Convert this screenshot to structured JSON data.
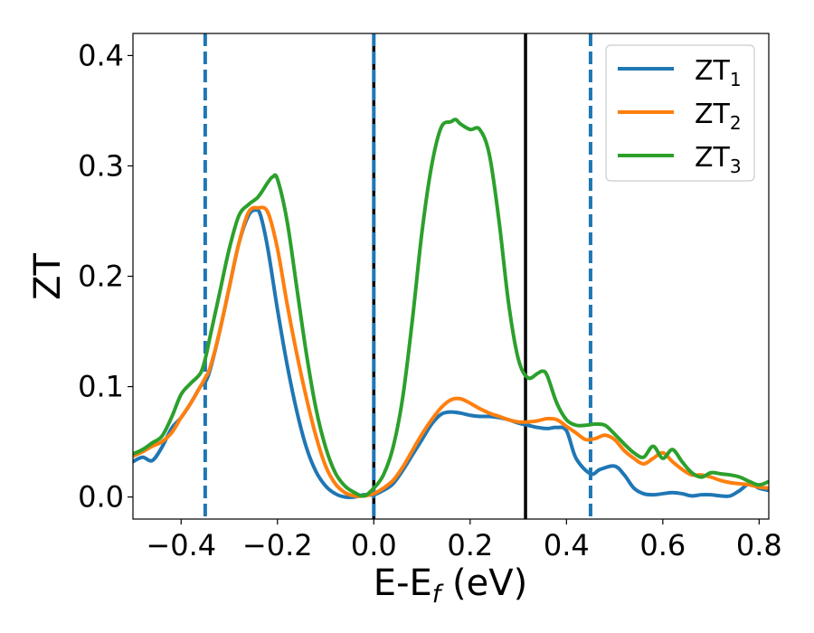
{
  "chart_data": {
    "type": "line",
    "xlabel": "E-E",
    "xlabel_sub": "f",
    "xlabel_unit": " (eV)",
    "ylabel": "ZT",
    "xlim": [
      -0.5,
      0.82
    ],
    "ylim": [
      -0.02,
      0.42
    ],
    "xticks": [
      -0.4,
      -0.2,
      0.0,
      0.2,
      0.4,
      0.6,
      0.8
    ],
    "xtick_labels": [
      "−0.4",
      "−0.2",
      "0.0",
      "0.2",
      "0.4",
      "0.6",
      "0.8"
    ],
    "yticks": [
      0.0,
      0.1,
      0.2,
      0.3,
      0.4
    ],
    "ytick_labels": [
      "0.0",
      "0.1",
      "0.2",
      "0.3",
      "0.4"
    ],
    "grid": false,
    "legend_position": "top-right",
    "series": [
      {
        "name": "ZT",
        "name_sub": "1",
        "color": "#1f77b4",
        "x": [
          -0.5,
          -0.48,
          -0.46,
          -0.44,
          -0.42,
          -0.4,
          -0.38,
          -0.36,
          -0.35,
          -0.34,
          -0.32,
          -0.3,
          -0.28,
          -0.26,
          -0.245,
          -0.235,
          -0.22,
          -0.2,
          -0.18,
          -0.16,
          -0.14,
          -0.12,
          -0.1,
          -0.08,
          -0.06,
          -0.04,
          -0.02,
          0.0,
          0.02,
          0.04,
          0.06,
          0.08,
          0.1,
          0.12,
          0.14,
          0.16,
          0.18,
          0.2,
          0.22,
          0.24,
          0.26,
          0.28,
          0.3,
          0.32,
          0.34,
          0.36,
          0.38,
          0.4,
          0.42,
          0.45,
          0.47,
          0.5,
          0.52,
          0.54,
          0.56,
          0.58,
          0.6,
          0.62,
          0.64,
          0.66,
          0.68,
          0.7,
          0.72,
          0.74,
          0.76,
          0.78,
          0.8,
          0.82
        ],
        "y": [
          0.032,
          0.036,
          0.033,
          0.045,
          0.062,
          0.072,
          0.085,
          0.1,
          0.104,
          0.115,
          0.15,
          0.19,
          0.23,
          0.255,
          0.26,
          0.255,
          0.225,
          0.17,
          0.12,
          0.078,
          0.045,
          0.023,
          0.01,
          0.003,
          0.0,
          0.0,
          0.002,
          0.002,
          0.006,
          0.012,
          0.024,
          0.038,
          0.052,
          0.066,
          0.075,
          0.077,
          0.076,
          0.074,
          0.073,
          0.073,
          0.072,
          0.07,
          0.067,
          0.065,
          0.063,
          0.062,
          0.063,
          0.06,
          0.035,
          0.021,
          0.025,
          0.028,
          0.02,
          0.008,
          0.003,
          0.002,
          0.003,
          0.004,
          0.003,
          0.001,
          0.002,
          0.002,
          0.001,
          0.001,
          0.006,
          0.012,
          0.008,
          0.006
        ]
      },
      {
        "name": "ZT",
        "name_sub": "2",
        "color": "#ff7f0e",
        "x": [
          -0.5,
          -0.48,
          -0.46,
          -0.44,
          -0.42,
          -0.4,
          -0.38,
          -0.36,
          -0.35,
          -0.34,
          -0.32,
          -0.3,
          -0.28,
          -0.26,
          -0.24,
          -0.22,
          -0.2,
          -0.18,
          -0.16,
          -0.14,
          -0.12,
          -0.1,
          -0.08,
          -0.06,
          -0.04,
          -0.02,
          0.0,
          0.02,
          0.04,
          0.06,
          0.08,
          0.1,
          0.12,
          0.14,
          0.16,
          0.18,
          0.2,
          0.22,
          0.24,
          0.26,
          0.28,
          0.3,
          0.32,
          0.34,
          0.36,
          0.38,
          0.4,
          0.42,
          0.44,
          0.46,
          0.48,
          0.5,
          0.52,
          0.54,
          0.56,
          0.58,
          0.6,
          0.62,
          0.64,
          0.66,
          0.68,
          0.7,
          0.72,
          0.74,
          0.76,
          0.78,
          0.8,
          0.82
        ],
        "y": [
          0.037,
          0.041,
          0.046,
          0.05,
          0.058,
          0.072,
          0.085,
          0.1,
          0.108,
          0.117,
          0.15,
          0.19,
          0.23,
          0.258,
          0.262,
          0.258,
          0.225,
          0.175,
          0.13,
          0.09,
          0.055,
          0.028,
          0.012,
          0.004,
          0.001,
          0.001,
          0.003,
          0.008,
          0.015,
          0.027,
          0.042,
          0.057,
          0.07,
          0.081,
          0.088,
          0.089,
          0.085,
          0.08,
          0.076,
          0.073,
          0.07,
          0.068,
          0.068,
          0.069,
          0.071,
          0.07,
          0.064,
          0.058,
          0.052,
          0.053,
          0.056,
          0.052,
          0.042,
          0.035,
          0.03,
          0.035,
          0.04,
          0.032,
          0.025,
          0.02,
          0.02,
          0.018,
          0.015,
          0.013,
          0.012,
          0.011,
          0.009,
          0.008
        ]
      },
      {
        "name": "ZT",
        "name_sub": "3",
        "color": "#2ca02c",
        "x": [
          -0.5,
          -0.48,
          -0.46,
          -0.44,
          -0.42,
          -0.4,
          -0.38,
          -0.36,
          -0.35,
          -0.34,
          -0.32,
          -0.3,
          -0.28,
          -0.26,
          -0.24,
          -0.22,
          -0.21,
          -0.2,
          -0.18,
          -0.16,
          -0.14,
          -0.12,
          -0.1,
          -0.08,
          -0.06,
          -0.04,
          -0.02,
          0.0,
          0.02,
          0.04,
          0.06,
          0.08,
          0.1,
          0.12,
          0.14,
          0.16,
          0.17,
          0.18,
          0.2,
          0.22,
          0.24,
          0.26,
          0.28,
          0.3,
          0.32,
          0.34,
          0.35,
          0.36,
          0.38,
          0.4,
          0.42,
          0.44,
          0.46,
          0.48,
          0.5,
          0.52,
          0.54,
          0.56,
          0.58,
          0.6,
          0.62,
          0.64,
          0.66,
          0.68,
          0.7,
          0.72,
          0.74,
          0.76,
          0.78,
          0.8,
          0.82
        ],
        "y": [
          0.039,
          0.043,
          0.049,
          0.055,
          0.072,
          0.093,
          0.103,
          0.112,
          0.125,
          0.145,
          0.185,
          0.225,
          0.255,
          0.265,
          0.272,
          0.285,
          0.29,
          0.288,
          0.25,
          0.19,
          0.13,
          0.08,
          0.045,
          0.022,
          0.01,
          0.004,
          0.001,
          0.008,
          0.02,
          0.045,
          0.09,
          0.16,
          0.24,
          0.3,
          0.335,
          0.34,
          0.342,
          0.338,
          0.333,
          0.333,
          0.31,
          0.25,
          0.175,
          0.125,
          0.108,
          0.112,
          0.114,
          0.11,
          0.085,
          0.07,
          0.065,
          0.065,
          0.066,
          0.065,
          0.057,
          0.048,
          0.04,
          0.036,
          0.046,
          0.035,
          0.043,
          0.032,
          0.022,
          0.018,
          0.022,
          0.021,
          0.02,
          0.018,
          0.014,
          0.011,
          0.014
        ]
      }
    ],
    "vlines": [
      {
        "x": -0.35,
        "color": "#1f77b4",
        "style": "dashed"
      },
      {
        "x": 0.0,
        "color": "#000000",
        "style": "solid"
      },
      {
        "x": 0.0,
        "color": "#1f77b4",
        "style": "dashed"
      },
      {
        "x": 0.315,
        "color": "#000000",
        "style": "solid"
      },
      {
        "x": 0.45,
        "color": "#1f77b4",
        "style": "dashed"
      }
    ]
  }
}
